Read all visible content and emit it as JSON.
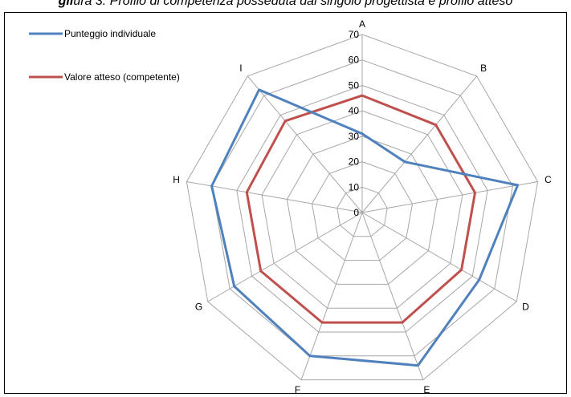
{
  "header": {
    "caption_bold": "gli",
    "caption_rest": "ura 3: Profilo di competenza posseduta dal singolo progettista e profilo atteso"
  },
  "chart_data": {
    "type": "radar",
    "axes": [
      "A",
      "B",
      "C",
      "D",
      "E",
      "F",
      "G",
      "H",
      "I"
    ],
    "rlim": [
      0,
      70
    ],
    "ticks": [
      0,
      10,
      20,
      30,
      40,
      50,
      60,
      70
    ],
    "grid": true,
    "legend_position": "top-left",
    "series": [
      {
        "name": "Punteggio individuale",
        "color": "#4f81bd",
        "values": [
          31,
          26,
          62,
          53,
          64,
          60,
          58,
          60,
          63
        ]
      },
      {
        "name": "Valore atteso (competente)",
        "color": "#c0504d",
        "values": [
          46,
          45,
          45,
          45,
          46,
          46,
          46,
          46,
          47
        ]
      }
    ]
  }
}
